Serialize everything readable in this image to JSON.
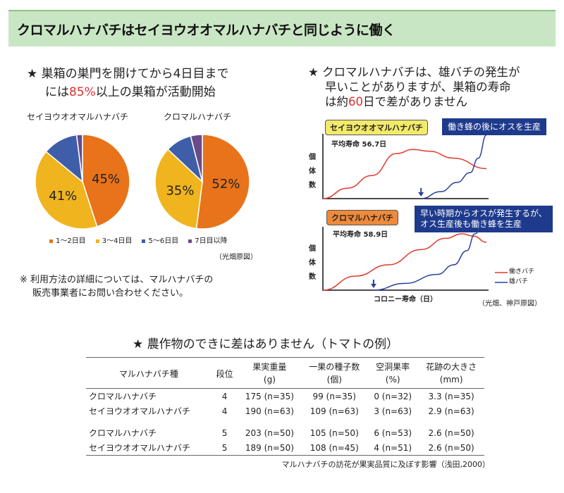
{
  "header": {
    "title": "クロマルハナバチはセイヨウオオマルハナバチと同じように働く"
  },
  "left": {
    "heading_line1": "★ 巣箱の巣門を開けてから4日目まで",
    "heading_line2_pre": "には",
    "heading_line2_highlight": "85%",
    "heading_line2_post": "以上の巣箱が活動開始",
    "note_line1": "※ 利用方法の詳細については、マルハナバチの",
    "note_line2": "販売事業者にお問い合わせください。",
    "source": "（光畑原図）"
  },
  "right": {
    "heading_line1": "★ クロマルハナバチは、雄バチの発生が",
    "heading_line2": "早いことがありますが、巣箱の寿命",
    "heading_line3_pre": "は約",
    "heading_line3_highlight": "60",
    "heading_line3_post": "日で差がありません",
    "source": "（光畑、神戸原図）"
  },
  "colors": {
    "c1": "#e8731a",
    "c2": "#f0b41e",
    "c3": "#3f5ea8",
    "c4": "#6a4a8a",
    "worker": "#e03a2a",
    "male": "#2a3f9a",
    "header_bg": "#c9e6c4",
    "callout": "#1e3a8c",
    "highlight": "#e03030"
  },
  "chart_data": [
    {
      "type": "pie",
      "title": "セイヨウオオマルハナバチ",
      "categories": [
        "1～2日目",
        "3～4日目",
        "5～6日目",
        "7日目以降"
      ],
      "values": [
        45,
        41,
        12,
        2
      ],
      "labels": [
        "45%",
        "41%",
        "",
        ""
      ],
      "legend_position": "bottom"
    },
    {
      "type": "pie",
      "title": "クロマルハナバチ",
      "categories": [
        "1～2日目",
        "3～4日目",
        "5～6日目",
        "7日目以降"
      ],
      "values": [
        52,
        35,
        9,
        4
      ],
      "labels": [
        "52%",
        "35%",
        "",
        ""
      ],
      "legend_position": "bottom"
    },
    {
      "type": "line",
      "title": "セイヨウオオマルハナバチ",
      "subtitle": "平均寿命 56.7日",
      "annotation": "働き蜂の後にオスを生産",
      "ylabel": "個体数",
      "xlabel": "コロニー寿命（日）",
      "series": [
        {
          "name": "働きバチ",
          "x": [
            0,
            15,
            30,
            45,
            55,
            65,
            80,
            100
          ],
          "y": [
            0,
            18,
            40,
            78,
            85,
            82,
            70,
            52
          ]
        },
        {
          "name": "雄バチ",
          "x": [
            60,
            72,
            82,
            90,
            95,
            100
          ],
          "y": [
            0,
            12,
            28,
            45,
            70,
            110
          ]
        }
      ]
    },
    {
      "type": "line",
      "title": "クロマルハナバチ",
      "subtitle": "平均寿命 58.9日",
      "annotation_line1": "早い時期からオスが発生するが、",
      "annotation_line2": "オス生産後も働き蜂を生産",
      "ylabel": "個体数",
      "xlabel": "コロニー寿命（日）",
      "series": [
        {
          "name": "働きバチ",
          "x": [
            0,
            20,
            40,
            60,
            75,
            85,
            92,
            100
          ],
          "y": [
            0,
            25,
            45,
            72,
            92,
            100,
            96,
            85
          ]
        },
        {
          "name": "雄バチ",
          "x": [
            31,
            50,
            70,
            80,
            88,
            93,
            98
          ],
          "y": [
            0,
            12,
            28,
            45,
            70,
            100,
            118
          ]
        }
      ],
      "legend": [
        "働きバチ",
        "雄バチ"
      ],
      "legend_position": "bottom-right"
    }
  ],
  "table": {
    "title": "★ 農作物のできに差はありません（トマトの例）",
    "headers": [
      [
        "マルハナバチ種",
        ""
      ],
      [
        "段位",
        ""
      ],
      [
        "果実重量",
        "(g)"
      ],
      [
        "一果の種子数",
        "(個)"
      ],
      [
        "空洞果率",
        "(%)"
      ],
      [
        "花跡の大きさ",
        "(mm)"
      ]
    ],
    "rows": [
      [
        "クロマルハナバチ",
        "4",
        "175 (n=35)",
        "99 (n=35)",
        "0 (n=32)",
        "3.3 (n=35)"
      ],
      [
        "セイヨウオオマルハナバチ",
        "4",
        "190 (n=63)",
        "109 (n=63)",
        "3 (n=63)",
        "2.9 (n=63)"
      ],
      [
        "クロマルハナバチ",
        "5",
        "203 (n=50)",
        "105 (n=50)",
        "6 (n=53)",
        "2.6 (n=50)"
      ],
      [
        "セイヨウオオマルハナバチ",
        "5",
        "189 (n=50)",
        "108 (n=45)",
        "4 (n=51)",
        "2.6 (n=50)"
      ]
    ],
    "caption": "マルハナバチの訪花が果実品質に及ぼす影響（浅田,2000）"
  }
}
